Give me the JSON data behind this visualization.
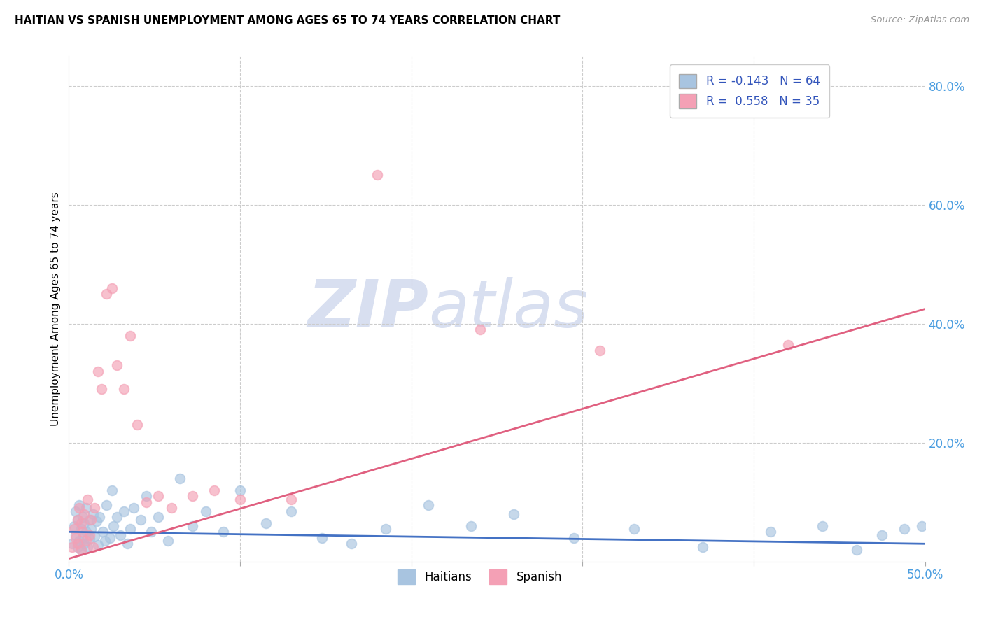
{
  "title": "HAITIAN VS SPANISH UNEMPLOYMENT AMONG AGES 65 TO 74 YEARS CORRELATION CHART",
  "source": "Source: ZipAtlas.com",
  "ylabel": "Unemployment Among Ages 65 to 74 years",
  "xlim": [
    0.0,
    0.5
  ],
  "ylim": [
    0.0,
    0.85
  ],
  "haitian_R": -0.143,
  "haitian_N": 64,
  "spanish_R": 0.558,
  "spanish_N": 35,
  "haitian_color": "#a8c4e0",
  "spanish_color": "#f4a0b5",
  "haitian_line_color": "#4472c4",
  "spanish_line_color": "#e06080",
  "watermark_color": "#d8dff0",
  "background_color": "#ffffff",
  "haitian_x": [
    0.002,
    0.003,
    0.004,
    0.004,
    0.005,
    0.005,
    0.006,
    0.006,
    0.007,
    0.007,
    0.008,
    0.008,
    0.009,
    0.009,
    0.01,
    0.01,
    0.011,
    0.012,
    0.012,
    0.013,
    0.014,
    0.015,
    0.016,
    0.017,
    0.018,
    0.02,
    0.021,
    0.022,
    0.024,
    0.025,
    0.026,
    0.028,
    0.03,
    0.032,
    0.034,
    0.036,
    0.038,
    0.042,
    0.045,
    0.048,
    0.052,
    0.058,
    0.065,
    0.072,
    0.08,
    0.09,
    0.1,
    0.115,
    0.13,
    0.148,
    0.165,
    0.185,
    0.21,
    0.235,
    0.26,
    0.295,
    0.33,
    0.37,
    0.41,
    0.44,
    0.46,
    0.475,
    0.488,
    0.498
  ],
  "haitian_y": [
    0.03,
    0.06,
    0.045,
    0.085,
    0.025,
    0.07,
    0.035,
    0.095,
    0.02,
    0.055,
    0.04,
    0.075,
    0.03,
    0.065,
    0.05,
    0.09,
    0.025,
    0.07,
    0.038,
    0.055,
    0.08,
    0.042,
    0.068,
    0.028,
    0.075,
    0.05,
    0.035,
    0.095,
    0.04,
    0.12,
    0.06,
    0.075,
    0.045,
    0.085,
    0.03,
    0.055,
    0.09,
    0.07,
    0.11,
    0.05,
    0.075,
    0.035,
    0.14,
    0.06,
    0.085,
    0.05,
    0.12,
    0.065,
    0.085,
    0.04,
    0.03,
    0.055,
    0.095,
    0.06,
    0.08,
    0.04,
    0.055,
    0.025,
    0.05,
    0.06,
    0.02,
    0.045,
    0.055,
    0.06
  ],
  "spanish_x": [
    0.002,
    0.003,
    0.004,
    0.005,
    0.005,
    0.006,
    0.007,
    0.007,
    0.008,
    0.009,
    0.01,
    0.011,
    0.012,
    0.013,
    0.014,
    0.015,
    0.017,
    0.019,
    0.022,
    0.025,
    0.028,
    0.032,
    0.036,
    0.04,
    0.045,
    0.052,
    0.06,
    0.072,
    0.085,
    0.1,
    0.13,
    0.18,
    0.24,
    0.31,
    0.42
  ],
  "spanish_y": [
    0.025,
    0.055,
    0.04,
    0.07,
    0.03,
    0.09,
    0.02,
    0.065,
    0.05,
    0.08,
    0.035,
    0.105,
    0.045,
    0.07,
    0.025,
    0.09,
    0.32,
    0.29,
    0.45,
    0.46,
    0.33,
    0.29,
    0.38,
    0.23,
    0.1,
    0.11,
    0.09,
    0.11,
    0.12,
    0.105,
    0.105,
    0.65,
    0.39,
    0.355,
    0.365
  ]
}
